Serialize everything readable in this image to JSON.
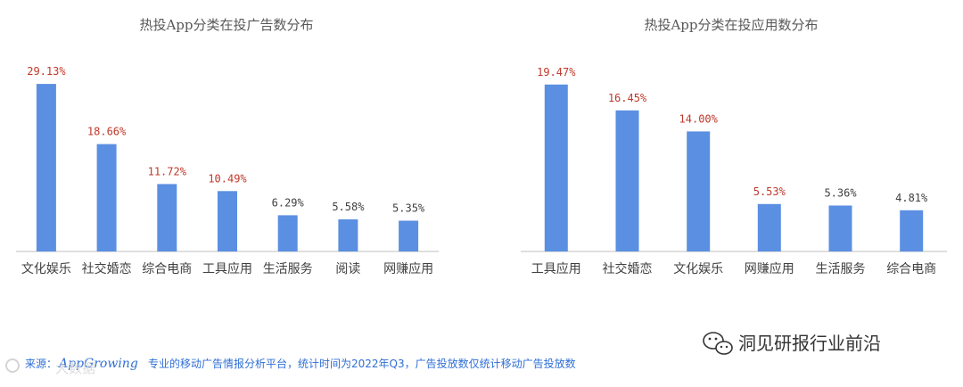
{
  "colors": {
    "bar": "#5B8FE2",
    "highlight_label": "#C0392B",
    "normal_label": "#404040",
    "source": "#2f6fd6"
  },
  "chart_data": [
    {
      "type": "bar",
      "title": "热投App分类在投广告数分布",
      "categories": [
        "文化娱乐",
        "社交婚恋",
        "综合电商",
        "工具应用",
        "生活服务",
        "阅读",
        "网赚应用"
      ],
      "values": [
        29.13,
        18.66,
        11.72,
        10.49,
        6.29,
        5.58,
        5.35
      ],
      "labels": [
        "29.13%",
        "18.66%",
        "11.72%",
        "10.49%",
        "6.29%",
        "5.58%",
        "5.35%"
      ],
      "highlighted": [
        true,
        true,
        true,
        true,
        false,
        false,
        false
      ],
      "ylim": [
        0,
        31
      ],
      "grid": false
    },
    {
      "type": "bar",
      "title": "热投App分类在投应用数分布",
      "categories": [
        "工具应用",
        "社交婚恋",
        "文化娱乐",
        "网赚应用",
        "生活服务",
        "综合电商"
      ],
      "values": [
        19.47,
        16.45,
        14.0,
        5.53,
        5.36,
        4.81
      ],
      "labels": [
        "19.47%",
        "16.45%",
        "14.00%",
        "5.53%",
        "5.36%",
        "4.81%"
      ],
      "highlighted": [
        true,
        true,
        true,
        true,
        false,
        false
      ],
      "ylim": [
        0,
        20.8
      ],
      "grid": false
    }
  ],
  "source": {
    "prefix": "来源：",
    "brand": "AppGrowing",
    "text": "专业的移动广告情报分析平台，统计时间为2022年Q3，广告投放数仅统计移动广告投放数"
  },
  "watermark": {
    "text": "洞见研报行业前沿",
    "icon": "wechat-icon"
  },
  "logo_left": {
    "text": "大数据"
  }
}
